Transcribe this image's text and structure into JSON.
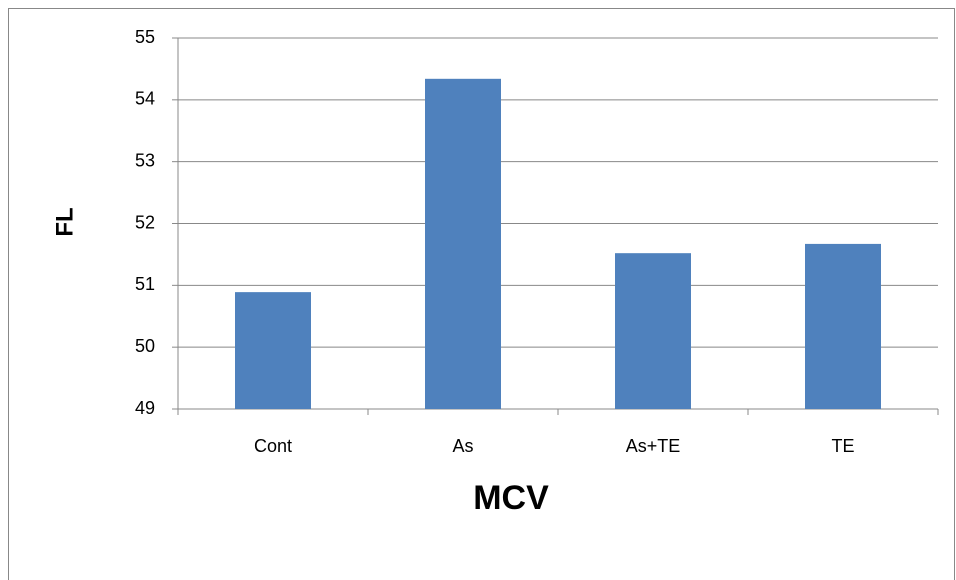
{
  "chart_data": {
    "type": "bar",
    "x_label": "MCV",
    "y_label": "FL",
    "categories": [
      "Cont",
      "As",
      "As+TE",
      "TE"
    ],
    "values": [
      50.89,
      54.34,
      51.52,
      51.67
    ],
    "color": "#4f81bd",
    "ylim": [
      49,
      55
    ],
    "yticks": [
      49,
      50,
      51,
      52,
      53,
      54,
      55
    ],
    "grid": true
  }
}
